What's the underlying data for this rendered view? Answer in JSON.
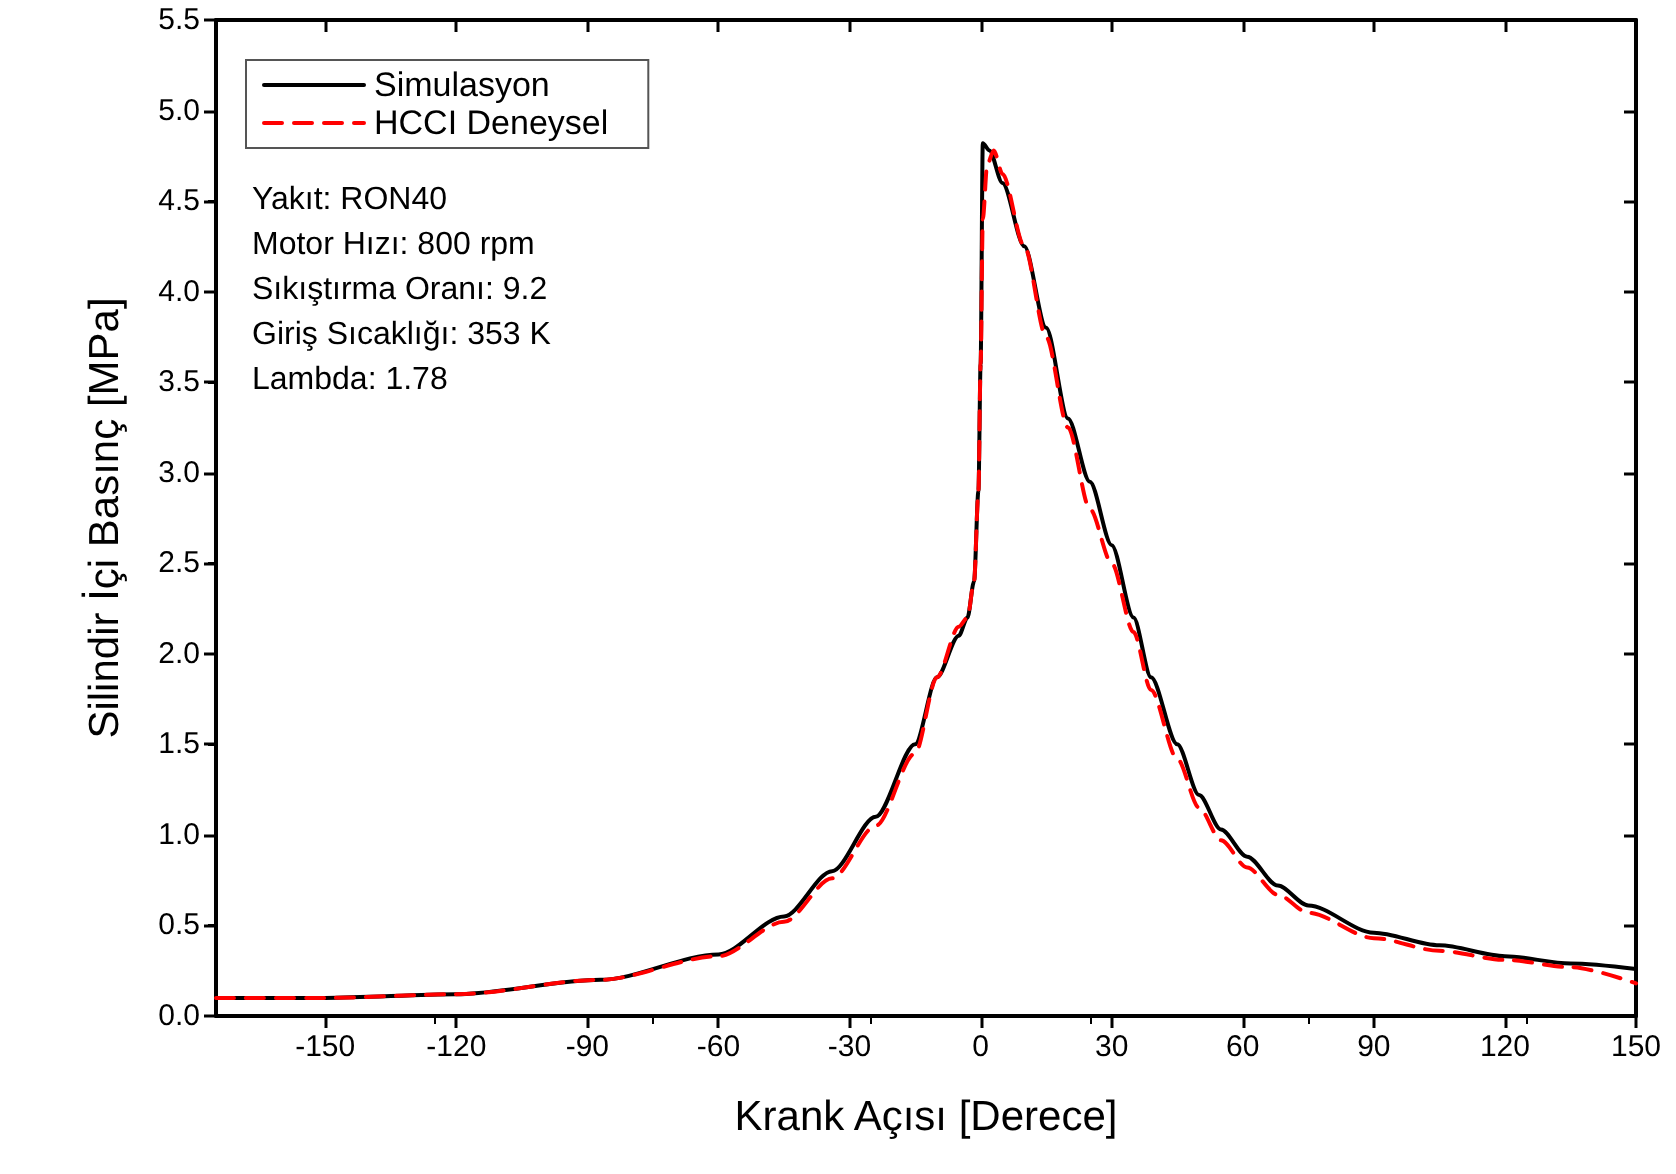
{
  "chart_data": {
    "type": "line",
    "xlabel": "Krank Açısı [Derece]",
    "ylabel": "Silindir İçi Basınç [MPa]",
    "xlim": [
      -175,
      150
    ],
    "xticks": [
      -150,
      -120,
      -90,
      -60,
      -30,
      0,
      30,
      60,
      90,
      120,
      150
    ],
    "ylim": [
      0,
      5.5
    ],
    "yticks": [
      {
        "value": 0,
        "label": "0.0"
      },
      {
        "value": 0.5,
        "label": "0.5"
      },
      {
        "value": 1,
        "label": "1.0"
      },
      {
        "value": 1.5,
        "label": "1.5"
      },
      {
        "value": 2,
        "label": "2.0"
      },
      {
        "value": 2.5,
        "label": "2.5"
      },
      {
        "value": 3,
        "label": "3.0"
      },
      {
        "value": 3.5,
        "label": "3.5"
      },
      {
        "value": 4,
        "label": "4.0"
      },
      {
        "value": 4.5,
        "label": "4.5"
      },
      {
        "value": 5,
        "label": "5.0"
      },
      {
        "value": 5.5,
        "label": "5.5"
      }
    ],
    "grid": false,
    "legend": "top left",
    "marker": "none",
    "annotations": [
      "Yakıt: RON40",
      "Motor Hızı: 800 rpm",
      "Sıkıştırma Oranı: 9.2",
      "Giriş Sıcaklığı: 353 K",
      "Lambda: 1.78"
    ],
    "series": [
      {
        "name": "Simulasyon",
        "color": "#000000",
        "line_style": "solid",
        "x": [
          -175,
          -150,
          -120,
          -87,
          -60,
          -45,
          -34,
          -24,
          -15,
          -10,
          -5,
          -3,
          -1.5,
          -0.5,
          0,
          0.5,
          2,
          5,
          10,
          15,
          20,
          25,
          30,
          35,
          39,
          45,
          50,
          55,
          61,
          68,
          75,
          90,
          105,
          120,
          135,
          150
        ],
        "values": [
          0.1,
          0.1,
          0.12,
          0.2,
          0.34,
          0.55,
          0.8,
          1.1,
          1.5,
          1.87,
          2.1,
          2.2,
          2.4,
          2.9,
          3.6,
          4.82,
          4.78,
          4.6,
          4.25,
          3.8,
          3.3,
          2.95,
          2.6,
          2.2,
          1.87,
          1.5,
          1.22,
          1.03,
          0.88,
          0.72,
          0.61,
          0.46,
          0.39,
          0.33,
          0.29,
          0.26
        ]
      },
      {
        "name": "HCCI Deneysel",
        "color": "#ff0000",
        "line_style": "dashed",
        "x": [
          -175,
          -150,
          -120,
          -87,
          -60,
          -45,
          -34,
          -24,
          -15,
          -10,
          -5,
          -3,
          -1.5,
          -0.5,
          0,
          0.5,
          1.5,
          3,
          5,
          10,
          15,
          20,
          25,
          30,
          35,
          39,
          45,
          50,
          55,
          61,
          68,
          75,
          90,
          105,
          120,
          135,
          150
        ],
        "values": [
          0.1,
          0.1,
          0.12,
          0.2,
          0.33,
          0.52,
          0.76,
          1.05,
          1.45,
          1.87,
          2.15,
          2.2,
          2.4,
          2.9,
          3.6,
          4.4,
          4.7,
          4.78,
          4.65,
          4.25,
          3.75,
          3.25,
          2.8,
          2.5,
          2.12,
          1.8,
          1.42,
          1.15,
          0.97,
          0.82,
          0.67,
          0.57,
          0.43,
          0.36,
          0.31,
          0.27,
          0.18
        ]
      }
    ]
  }
}
